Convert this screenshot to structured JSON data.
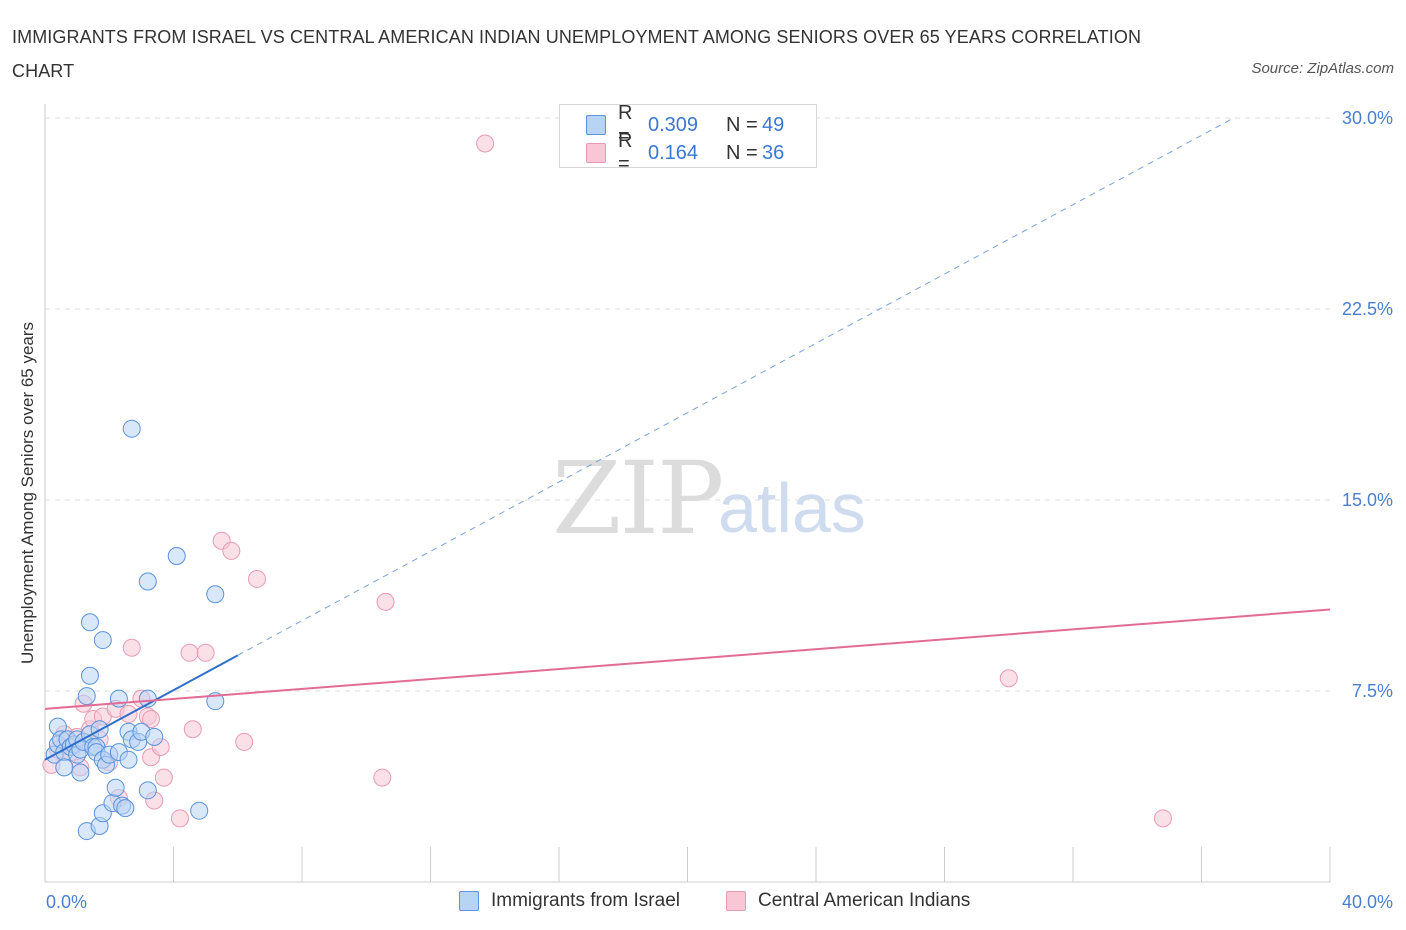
{
  "title": "IMMIGRANTS FROM ISRAEL VS CENTRAL AMERICAN INDIAN UNEMPLOYMENT AMONG SENIORS OVER 65 YEARS CORRELATION CHART",
  "source": "Source: ZipAtlas.com",
  "watermark": {
    "zip": "ZIP",
    "atlas": "atlas"
  },
  "legend_top": [
    {
      "series": "Immigrants from Israel",
      "r_label": "R =",
      "r_value": "0.309",
      "n_label": "N =",
      "n_value": "49"
    },
    {
      "series": "Central American Indians",
      "r_label": "R =",
      "r_value": "0.164",
      "n_label": "N =",
      "n_value": "36"
    }
  ],
  "legend_bottom": [
    "Immigrants from Israel",
    "Central American Indians"
  ],
  "colors": {
    "israel_fill": "#b8d4f5",
    "israel_stroke": "#5b93dc",
    "israel_line": "#2f6fcc",
    "cai_fill": "#f9c6d6",
    "cai_stroke": "#e89ab5",
    "cai_line": "#e36c95",
    "grid": "#dddddd",
    "axis_text": "#4a7fd0"
  },
  "chart_data": {
    "type": "scatter",
    "title": "IMMIGRANTS FROM ISRAEL VS CENTRAL AMERICAN INDIAN UNEMPLOYMENT AMONG SENIORS OVER 65 YEARS CORRELATION CHART",
    "xlabel": "",
    "ylabel": "Unemployment Among Seniors over 65 years",
    "xlim": [
      0,
      40
    ],
    "ylim": [
      0,
      30
    ],
    "x_tick_labels": [
      {
        "value": 0,
        "label": "0.0%"
      },
      {
        "value": 40,
        "label": "40.0%"
      }
    ],
    "y_tick_labels": [
      {
        "value": 7.5,
        "label": "7.5%"
      },
      {
        "value": 15.0,
        "label": "15.0%"
      },
      {
        "value": 22.5,
        "label": "22.5%"
      },
      {
        "value": 30.0,
        "label": "30.0%"
      }
    ],
    "series": [
      {
        "name": "Immigrants from Israel",
        "points": [
          [
            0.3,
            5.0
          ],
          [
            0.4,
            5.4
          ],
          [
            0.4,
            6.1
          ],
          [
            0.5,
            5.6
          ],
          [
            0.6,
            5.1
          ],
          [
            0.6,
            4.5
          ],
          [
            0.7,
            5.6
          ],
          [
            0.8,
            5.3
          ],
          [
            0.9,
            5.4
          ],
          [
            1.0,
            5.6
          ],
          [
            1.0,
            5.0
          ],
          [
            1.1,
            5.2
          ],
          [
            1.1,
            4.3
          ],
          [
            1.2,
            5.5
          ],
          [
            1.3,
            7.3
          ],
          [
            1.4,
            5.8
          ],
          [
            1.5,
            5.3
          ],
          [
            1.6,
            5.3
          ],
          [
            1.3,
            2.0
          ],
          [
            1.7,
            2.2
          ],
          [
            1.8,
            2.7
          ],
          [
            1.6,
            5.1
          ],
          [
            1.7,
            6.0
          ],
          [
            1.8,
            4.8
          ],
          [
            1.9,
            4.6
          ],
          [
            2.0,
            5.0
          ],
          [
            2.1,
            3.1
          ],
          [
            2.2,
            3.7
          ],
          [
            2.3,
            5.1
          ],
          [
            2.3,
            7.2
          ],
          [
            1.4,
            8.1
          ],
          [
            1.4,
            10.2
          ],
          [
            1.8,
            9.5
          ],
          [
            2.4,
            3.0
          ],
          [
            2.5,
            2.9
          ],
          [
            2.6,
            5.9
          ],
          [
            2.6,
            4.8
          ],
          [
            2.7,
            17.8
          ],
          [
            2.7,
            5.6
          ],
          [
            2.9,
            5.5
          ],
          [
            3.0,
            5.9
          ],
          [
            3.2,
            3.6
          ],
          [
            3.2,
            7.2
          ],
          [
            3.2,
            11.8
          ],
          [
            3.4,
            5.7
          ],
          [
            4.1,
            12.8
          ],
          [
            4.8,
            2.8
          ],
          [
            5.3,
            7.1
          ],
          [
            5.3,
            11.3
          ]
        ],
        "trend": {
          "x": [
            0.0,
            6.0
          ],
          "y": [
            4.8,
            8.9
          ],
          "extended_to": [
            37.0,
            30.0
          ]
        }
      },
      {
        "name": "Central American Indians",
        "points": [
          [
            0.2,
            4.6
          ],
          [
            0.4,
            5.2
          ],
          [
            0.6,
            5.8
          ],
          [
            0.8,
            5.1
          ],
          [
            1.0,
            5.7
          ],
          [
            1.1,
            4.5
          ],
          [
            1.2,
            7.0
          ],
          [
            1.4,
            6.0
          ],
          [
            1.5,
            6.4
          ],
          [
            1.7,
            5.6
          ],
          [
            1.8,
            6.5
          ],
          [
            2.0,
            4.7
          ],
          [
            2.2,
            6.8
          ],
          [
            2.3,
            3.3
          ],
          [
            2.6,
            6.6
          ],
          [
            2.7,
            9.2
          ],
          [
            3.0,
            7.2
          ],
          [
            3.2,
            6.5
          ],
          [
            3.3,
            6.4
          ],
          [
            3.3,
            4.9
          ],
          [
            3.4,
            3.2
          ],
          [
            3.6,
            5.3
          ],
          [
            3.7,
            4.1
          ],
          [
            4.2,
            2.5
          ],
          [
            4.5,
            9.0
          ],
          [
            4.6,
            6.0
          ],
          [
            5.0,
            9.0
          ],
          [
            5.5,
            13.4
          ],
          [
            5.8,
            13.0
          ],
          [
            6.2,
            5.5
          ],
          [
            6.6,
            11.9
          ],
          [
            10.5,
            4.1
          ],
          [
            10.6,
            11.0
          ],
          [
            13.7,
            29.0
          ],
          [
            30.0,
            8.0
          ],
          [
            34.8,
            2.5
          ]
        ],
        "trend": {
          "x": [
            0.0,
            40.0
          ],
          "y": [
            6.8,
            10.7
          ]
        }
      }
    ],
    "grid": true,
    "legend_position": "top-center"
  }
}
